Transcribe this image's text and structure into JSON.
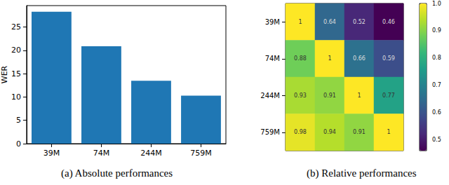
{
  "chart_data": [
    {
      "type": "bar",
      "title": "(a) Absolute performances",
      "categories": [
        "39M",
        "74M",
        "244M",
        "759M"
      ],
      "values": [
        28.3,
        20.9,
        13.5,
        10.3
      ],
      "color": "#1f77b4",
      "ylabel": "WER",
      "ylim": [
        0,
        29.6
      ],
      "yticks": [
        0,
        5,
        10,
        15,
        20,
        25
      ]
    },
    {
      "type": "heatmap",
      "title": "(b) Relative performances",
      "categories": [
        null,
        null,
        null,
        null
      ],
      "rows": [
        "39M",
        "74M",
        "244M",
        "759M"
      ],
      "cells": [
        [
          1,
          0.64,
          0.52,
          0.46
        ],
        [
          0.88,
          1,
          0.66,
          0.59
        ],
        [
          0.93,
          0.91,
          1,
          0.77
        ],
        [
          0.98,
          0.94,
          0.91,
          1
        ]
      ],
      "colorbar": {
        "range": [
          0.46,
          1
        ],
        "ticks": [
          0.5,
          0.6,
          0.7,
          0.8,
          0.9,
          {
            "value": 1,
            "label": "1.0"
          }
        ]
      },
      "data_labels": true,
      "tick_labels": "y"
    }
  ]
}
